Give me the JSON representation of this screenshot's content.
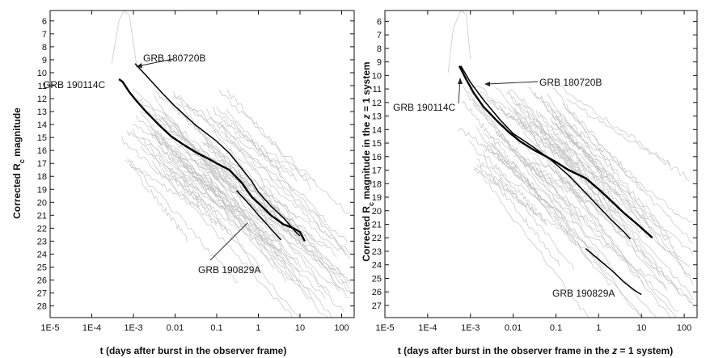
{
  "chart_data": [
    {
      "type": "line",
      "title": "",
      "xlabel": "t (days after burst in the observer frame)",
      "ylabel": "Corrected R_c magnitude",
      "x_scale": "log",
      "xlim": [
        1e-05,
        200
      ],
      "ylim": [
        5.2,
        28.9
      ],
      "y_inverted": true,
      "x_tick_values": [
        1e-05,
        0.0001,
        0.001,
        0.01,
        0.1,
        1,
        10,
        100
      ],
      "x_tick_labels": [
        "1E-5",
        "1E-4",
        "1E-3",
        "0.01",
        "0.1",
        "1",
        "10",
        "100"
      ],
      "y_tick_values": [
        6,
        7,
        8,
        9,
        10,
        11,
        12,
        13,
        14,
        15,
        16,
        17,
        18,
        19,
        20,
        21,
        22,
        23,
        24,
        25,
        26,
        27,
        28
      ],
      "y_tick_labels": [
        "6",
        "7",
        "8",
        "9",
        "10",
        "11",
        "12",
        "13",
        "14",
        "15",
        "16",
        "17",
        "18",
        "19",
        "20",
        "21",
        "22",
        "23",
        "24",
        "25",
        "26",
        "27",
        "28"
      ],
      "background_sample_color": "#c4c4c4",
      "highlight_color": "#000000",
      "series": [
        {
          "name": "GRB 190114C",
          "style": "thick",
          "points": [
            [
              0.00045,
              10.5
            ],
            [
              0.00055,
              10.7
            ],
            [
              0.0008,
              11.5
            ],
            [
              0.0012,
              12.2
            ],
            [
              0.002,
              13.0
            ],
            [
              0.004,
              14.0
            ],
            [
              0.008,
              14.9
            ],
            [
              0.015,
              15.5
            ],
            [
              0.03,
              16.1
            ],
            [
              0.06,
              16.6
            ],
            [
              0.1,
              17.0
            ],
            [
              0.2,
              17.5
            ],
            [
              0.4,
              18.5
            ],
            [
              0.7,
              19.6
            ],
            [
              1.2,
              20.3
            ],
            [
              2.0,
              21.0
            ],
            [
              4.0,
              21.7
            ],
            [
              7.0,
              22.0
            ],
            [
              10.0,
              22.3
            ],
            [
              13.0,
              23.0
            ]
          ]
        },
        {
          "name": "GRB 180720B",
          "style": "medium",
          "points": [
            [
              0.0011,
              9.3
            ],
            [
              0.002,
              10.2
            ],
            [
              0.005,
              11.6
            ],
            [
              0.01,
              12.6
            ],
            [
              0.03,
              14.0
            ],
            [
              0.1,
              15.3
            ],
            [
              0.2,
              16.2
            ],
            [
              0.4,
              17.4
            ],
            [
              0.7,
              18.4
            ],
            [
              1.0,
              19.2
            ],
            [
              2.0,
              20.3
            ],
            [
              4.0,
              21.2
            ],
            [
              8.0,
              22.3
            ],
            [
              10.0,
              22.6
            ]
          ]
        },
        {
          "name": "GRB 190829A",
          "style": "medium",
          "points": [
            [
              0.3,
              19.1
            ],
            [
              0.45,
              19.7
            ],
            [
              0.7,
              20.4
            ],
            [
              1.0,
              21.0
            ],
            [
              1.5,
              21.6
            ],
            [
              2.5,
              22.4
            ],
            [
              3.5,
              22.9
            ]
          ]
        }
      ],
      "annotations": [
        {
          "text": "GRB 190114C",
          "target": [
            0.00045,
            10.5
          ]
        },
        {
          "text": "GRB 180720B",
          "target": [
            0.0014,
            9.0
          ]
        },
        {
          "text": "GRB 190829A",
          "target": [
            0.6,
            24.1
          ]
        }
      ]
    },
    {
      "type": "line",
      "title": "",
      "xlabel": "t (days after burst in the observer frame in the z = 1 system)",
      "ylabel": "Corrected R_c magnitude in the z = 1 system",
      "x_scale": "log",
      "xlim": [
        1e-05,
        200
      ],
      "ylim": [
        5.2,
        27.9
      ],
      "y_inverted": true,
      "x_tick_values": [
        1e-05,
        0.0001,
        0.001,
        0.01,
        0.1,
        1,
        10,
        100
      ],
      "x_tick_labels": [
        "1E-5",
        "1E-4",
        "1E-3",
        "0.01",
        "0.1",
        "1",
        "10",
        "100"
      ],
      "y_tick_values": [
        6,
        7,
        8,
        9,
        10,
        11,
        12,
        13,
        14,
        15,
        16,
        17,
        18,
        19,
        20,
        21,
        22,
        23,
        24,
        25,
        26,
        27
      ],
      "y_tick_labels": [
        "6",
        "7",
        "8",
        "9",
        "10",
        "11",
        "12",
        "13",
        "14",
        "15",
        "16",
        "17",
        "18",
        "19",
        "20",
        "21",
        "22",
        "23",
        "24",
        "25",
        "26",
        "27"
      ],
      "background_sample_color": "#c4c4c4",
      "highlight_color": "#000000",
      "series": [
        {
          "name": "GRB 190114C",
          "style": "thick",
          "points": [
            [
              0.00055,
              9.3
            ],
            [
              0.0008,
              10.3
            ],
            [
              0.0012,
              11.3
            ],
            [
              0.002,
              12.3
            ],
            [
              0.004,
              13.3
            ],
            [
              0.008,
              14.2
            ],
            [
              0.015,
              14.9
            ],
            [
              0.03,
              15.5
            ],
            [
              0.06,
              16.0
            ],
            [
              0.1,
              16.4
            ],
            [
              0.2,
              17.0
            ],
            [
              0.5,
              17.6
            ],
            [
              1.0,
              18.4
            ],
            [
              2.0,
              19.3
            ],
            [
              4.0,
              20.2
            ],
            [
              8.0,
              21.0
            ],
            [
              12.0,
              21.5
            ],
            [
              18.0,
              22.0
            ]
          ]
        },
        {
          "name": "GRB 180720B",
          "style": "medium",
          "points": [
            [
              0.0006,
              9.3
            ],
            [
              0.001,
              10.5
            ],
            [
              0.002,
              11.8
            ],
            [
              0.005,
              13.3
            ],
            [
              0.01,
              14.3
            ],
            [
              0.03,
              15.3
            ],
            [
              0.08,
              16.3
            ],
            [
              0.2,
              17.4
            ],
            [
              0.5,
              18.7
            ],
            [
              1.0,
              19.7
            ],
            [
              2.0,
              20.7
            ],
            [
              4.0,
              21.6
            ],
            [
              5.5,
              22.1
            ]
          ]
        },
        {
          "name": "GRB 190829A",
          "style": "medium",
          "points": [
            [
              0.5,
              22.8
            ],
            [
              1.0,
              23.6
            ],
            [
              2.0,
              24.4
            ],
            [
              4.0,
              25.3
            ],
            [
              7.0,
              25.9
            ],
            [
              10.0,
              26.2
            ]
          ]
        }
      ],
      "annotations": [
        {
          "text": "GRB 190114C",
          "target": [
            0.0005,
            9.8
          ]
        },
        {
          "text": "GRB 180720B",
          "target": [
            0.0007,
            10.3
          ]
        },
        {
          "text": "GRB 190829A",
          "target": [
            0.5,
            22.8
          ]
        }
      ]
    }
  ]
}
